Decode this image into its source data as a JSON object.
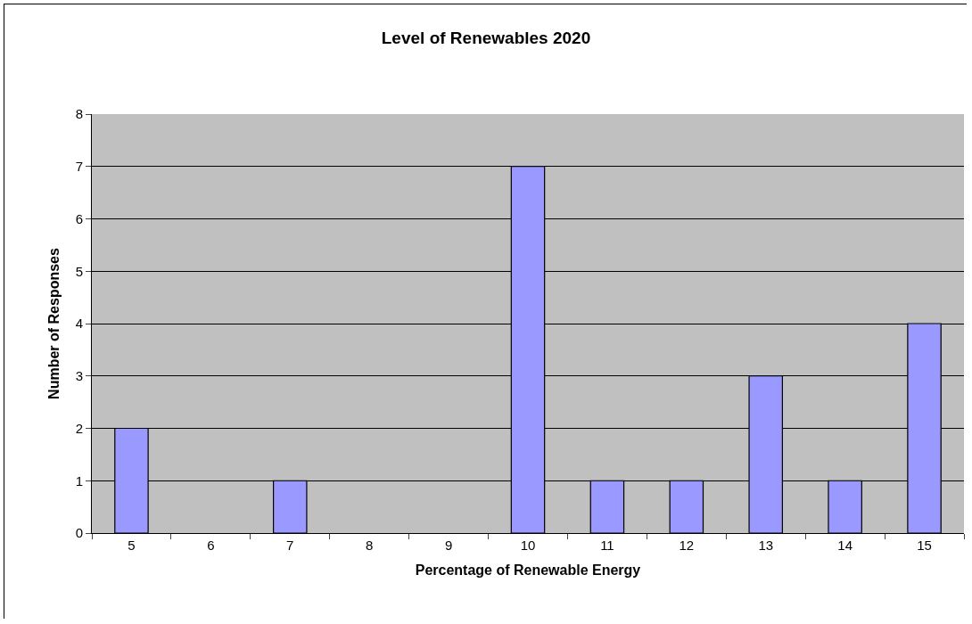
{
  "chart_data": {
    "type": "bar",
    "title": "Level of Renewables 2020",
    "xlabel": "Percentage of Renewable Energy",
    "ylabel": "Number of Responses",
    "categories": [
      "5",
      "6",
      "7",
      "8",
      "9",
      "10",
      "11",
      "12",
      "13",
      "14",
      "15"
    ],
    "values": [
      2,
      0,
      1,
      0,
      0,
      7,
      1,
      1,
      3,
      1,
      4
    ],
    "color": "#9999ff",
    "ylim": [
      0,
      8
    ],
    "yticks": [
      0,
      1,
      2,
      3,
      4,
      5,
      6,
      7,
      8
    ],
    "grid": "y"
  }
}
